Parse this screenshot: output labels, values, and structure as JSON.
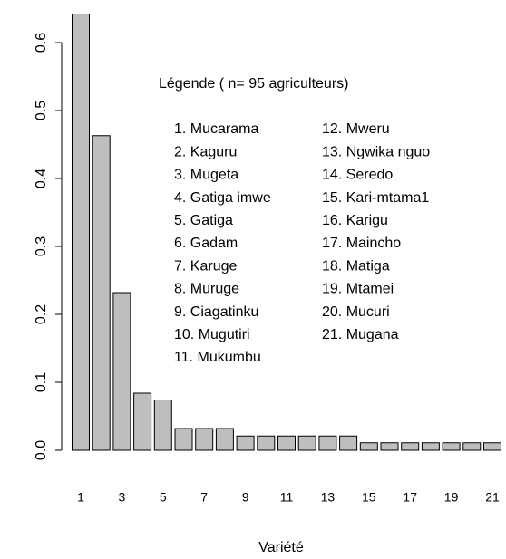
{
  "chart_data": {
    "type": "bar",
    "x_label": "Variété",
    "legend_title": "Légende ( n= 95 agriculteurs)",
    "legend_items": [
      "1. Mucarama",
      "2. Kaguru",
      "3. Mugeta",
      "4. Gatiga imwe",
      "5. Gatiga",
      "6. Gadam",
      "7. Karuge",
      "8. Muruge",
      "9. Ciagatinku",
      "10. Mugutiri",
      "11. Mukumbu",
      "12. Mweru",
      "13. Ngwika nguo",
      "14. Seredo",
      "15. Kari-mtama1",
      "16. Karigu",
      "17. Maincho",
      "18. Matiga",
      "19. Mtamei",
      "20. Mucuri",
      "21. Mugana"
    ],
    "categories": [
      "1",
      null,
      "3",
      null,
      "5",
      null,
      "7",
      null,
      "9",
      null,
      "11",
      null,
      "13",
      null,
      "15",
      null,
      "17",
      null,
      "19",
      null,
      "21"
    ],
    "values": [
      0.642,
      0.463,
      0.232,
      0.084,
      0.074,
      0.032,
      0.032,
      0.032,
      0.021,
      0.021,
      0.021,
      0.021,
      0.021,
      0.021,
      0.011,
      0.011,
      0.011,
      0.011,
      0.011,
      0.011,
      0.011
    ],
    "color": "#bebebe",
    "ylim": [
      0,
      0.65
    ],
    "yticks": [
      {
        "value": 0,
        "label": "0.0"
      },
      0.1,
      0.2,
      0.3,
      0.4,
      0.5,
      0.6
    ]
  }
}
